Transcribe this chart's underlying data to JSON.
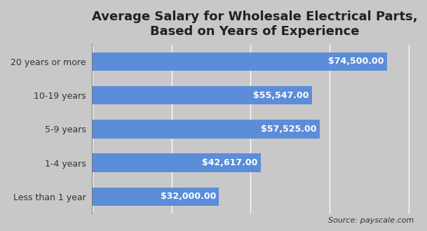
{
  "title": "Average Salary for Wholesale Electrical Parts,\nBased on Years of Experience",
  "categories": [
    "20 years or more",
    "10-19 years",
    "5-9 years",
    "1-4 years",
    "Less than 1 year"
  ],
  "values": [
    74500,
    55547,
    57525,
    42617,
    32000
  ],
  "bar_color": "#5b8dd9",
  "label_color": "#ffffff",
  "background_color": "#c8c8c8",
  "title_fontsize": 13,
  "label_fontsize": 9,
  "ytick_fontsize": 9,
  "source_text": "Source: payscale.com",
  "xlim": [
    0,
    82000
  ],
  "grid_color": "#ffffff",
  "spine_color": "#666666"
}
